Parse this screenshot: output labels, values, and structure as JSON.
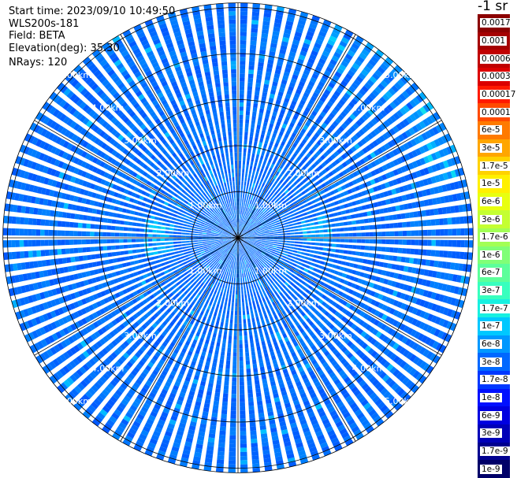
{
  "header": {
    "start_time": "Start time: 2023/09/10 10:49:50",
    "instrument": "WLS200s-181",
    "field": "Field: BETA",
    "elevation": "Elevation(deg): 35.30",
    "nrays": "NRays: 120"
  },
  "colorbar": {
    "title": "-1 sr",
    "labels": [
      "0.0017",
      "0.001",
      "0.0006",
      "0.0003",
      "0.00017",
      "0.0001",
      "6e-5",
      "3e-5",
      "1.7e-5",
      "1e-5",
      "6e-6",
      "3e-6",
      "1.7e-6",
      "1e-6",
      "6e-7",
      "3e-7",
      "1.7e-7",
      "1e-7",
      "6e-8",
      "3e-8",
      "1.7e-8",
      "1e-8",
      "6e-9",
      "3e-9",
      "1.7e-9",
      "1e-9"
    ],
    "colors": [
      "#8b0000",
      "#a50000",
      "#c00000",
      "#dc0000",
      "#ff1a00",
      "#ff4a00",
      "#ff7a00",
      "#ffa600",
      "#ffd200",
      "#fff000",
      "#e8ff10",
      "#c4ff32",
      "#a2ff55",
      "#80ff77",
      "#5cff9a",
      "#38ffbe",
      "#18f0e0",
      "#00c8ff",
      "#0098ff",
      "#0068ff",
      "#0038ff",
      "#0010ff",
      "#0000e0",
      "#0000b8",
      "#00008f",
      "#000068"
    ]
  },
  "chart_data": {
    "type": "heatmap",
    "title": "",
    "projection": "polar PPI",
    "field": "BETA",
    "units": "sr-1",
    "elevation_deg": 35.3,
    "nrays": 120,
    "range_rings_km": [
      1,
      2,
      3,
      4,
      5
    ],
    "ring_labels": [
      "1.00km",
      "2.00km",
      "3.00km",
      "4.00km",
      "5.00km"
    ],
    "max_range_km": 5.1,
    "azimuth_grid_deg": 30,
    "scale": "log",
    "value_range": [
      1e-09,
      0.0017
    ],
    "dominant_values": [
      1.7e-08,
      1e-07
    ],
    "grid": true,
    "legend": "colorbar right"
  }
}
